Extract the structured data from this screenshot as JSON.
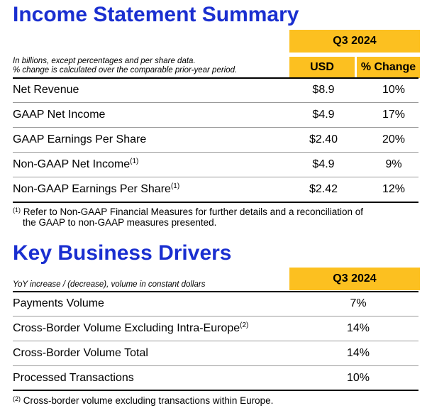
{
  "income": {
    "title": "Income Statement Summary",
    "period": "Q3 2024",
    "note_line1": "In billions, except percentages and per share data.",
    "note_line2": "% change is calculated over the comparable prior-year period.",
    "col_usd": "USD",
    "col_change": "% Change",
    "rows": [
      {
        "label": "Net Revenue",
        "sup": "",
        "usd": "$8.9",
        "change": "10%"
      },
      {
        "label": "GAAP Net Income",
        "sup": "",
        "usd": "$4.9",
        "change": "17%"
      },
      {
        "label": "GAAP Earnings Per Share",
        "sup": "",
        "usd": "$2.40",
        "change": "20%"
      },
      {
        "label": "Non-GAAP Net Income",
        "sup": "(1)",
        "usd": "$4.9",
        "change": "9%"
      },
      {
        "label": "Non-GAAP Earnings Per Share",
        "sup": "(1)",
        "usd": "$2.42",
        "change": "12%"
      }
    ],
    "footnote_marker": "(1)",
    "footnote_line1": "Refer to Non-GAAP Financial Measures for further details and a reconciliation of",
    "footnote_line2": "the GAAP to non-GAAP measures presented."
  },
  "drivers": {
    "title": "Key Business Drivers",
    "period": "Q3 2024",
    "note": "YoY increase / (decrease), volume in constant dollars",
    "rows": [
      {
        "label": "Payments Volume",
        "sup": "",
        "value": "7%"
      },
      {
        "label": "Cross-Border Volume Excluding Intra-Europe",
        "sup": "(2)",
        "value": "14%"
      },
      {
        "label": "Cross-Border Volume Total",
        "sup": "",
        "value": "14%"
      },
      {
        "label": "Processed Transactions",
        "sup": "",
        "value": "10%"
      }
    ],
    "footnote_marker": "(2)",
    "footnote": "Cross-border volume excluding transactions within Europe."
  },
  "colors": {
    "title": "#1a2fd0",
    "header_fill": "#fcc020"
  }
}
